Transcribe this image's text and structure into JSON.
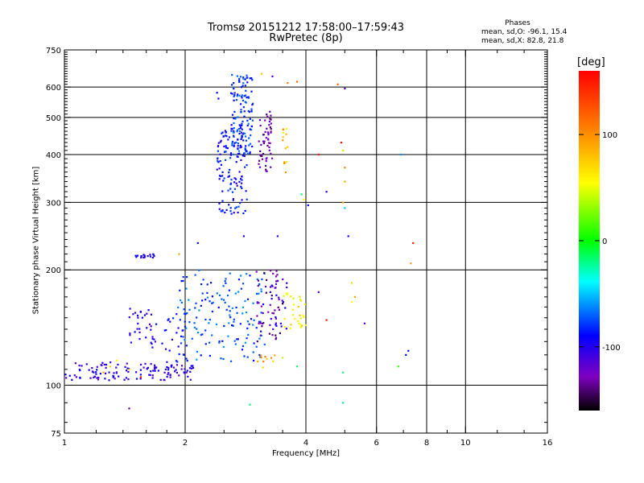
{
  "header": {
    "title_line1": "Tromsø 20151212 17:58:00–17:59:43",
    "title_line2": "RwPretec (8p)"
  },
  "phase_stats": {
    "heading": "Phases",
    "line_o": "mean, sd,O: -96.1, 15.4",
    "line_x": "mean, sd,X: 82.8, 21.8"
  },
  "colorbar": {
    "unit_label": "[deg]",
    "ticks": [
      "100",
      "0",
      "-100"
    ],
    "colors": [
      "#ff0000",
      "#ff8000",
      "#ffff00",
      "#00ff00",
      "#00ffff",
      "#0000ff",
      "#8000c0",
      "#000000"
    ]
  },
  "chart_data": {
    "type": "scatter",
    "title": "Tromsø 20151212 17:58:00–17:59:43",
    "subtitle": "RwPretec (8p)",
    "xlabel": "Frequency [MHz]",
    "ylabel": "Stationary phase Virtual Height [km]",
    "x_scale": "log",
    "y_scale": "log",
    "xlim": [
      1,
      16
    ],
    "ylim": [
      75,
      750
    ],
    "x_ticks": [
      1,
      2,
      4,
      6,
      8,
      10,
      16
    ],
    "y_ticks": [
      75,
      100,
      200,
      300,
      400,
      500,
      600,
      750
    ],
    "x_gridlines": [
      2,
      4,
      6,
      8,
      10
    ],
    "y_gridlines": [
      100,
      200,
      300,
      400,
      500,
      600
    ],
    "grid": true,
    "color_scale": {
      "label": "[deg]",
      "min": -160,
      "max": 160
    },
    "clusters": [
      {
        "f": [
          1.0,
          2.1
        ],
        "h": [
          103,
          115
        ],
        "phase": -105,
        "n": 130
      },
      {
        "f": [
          1.5,
          1.68
        ],
        "h": [
          215,
          220
        ],
        "phase": -100,
        "n": 18
      },
      {
        "f": [
          1.45,
          1.7
        ],
        "h": [
          125,
          160
        ],
        "phase": -100,
        "n": 35
      },
      {
        "f": [
          1.75,
          2.0
        ],
        "h": [
          120,
          150
        ],
        "phase": -95,
        "n": 20
      },
      {
        "f": [
          1.9,
          3.2
        ],
        "h": [
          115,
          200
        ],
        "phase": -75,
        "n": 160
      },
      {
        "f": [
          2.4,
          2.85
        ],
        "h": [
          280,
          470
        ],
        "phase": -90,
        "n": 120
      },
      {
        "f": [
          2.6,
          2.95
        ],
        "h": [
          400,
          650
        ],
        "phase": -80,
        "n": 130
      },
      {
        "f": [
          3.05,
          3.3
        ],
        "h": [
          360,
          520
        ],
        "phase": -130,
        "n": 55
      },
      {
        "f": [
          3.0,
          3.5
        ],
        "h": [
          130,
          200
        ],
        "phase": -135,
        "n": 45
      },
      {
        "f": [
          3.25,
          3.6
        ],
        "h": [
          140,
          190
        ],
        "phase": -110,
        "n": 25
      },
      {
        "f": [
          3.5,
          4.0
        ],
        "h": [
          140,
          175
        ],
        "phase": 80,
        "n": 30
      },
      {
        "f": [
          3.5,
          3.6
        ],
        "h": [
          355,
          470
        ],
        "phase": 95,
        "n": 14
      },
      {
        "f": [
          3.0,
          3.4
        ],
        "h": [
          110,
          120
        ],
        "phase": 100,
        "n": 10
      }
    ],
    "points": [
      {
        "f": 1.3,
        "h": 112,
        "phase": 90
      },
      {
        "f": 1.35,
        "h": 116,
        "phase": 80
      },
      {
        "f": 1.25,
        "h": 108,
        "phase": 100
      },
      {
        "f": 1.45,
        "h": 110,
        "phase": 90
      },
      {
        "f": 1.55,
        "h": 105,
        "phase": 150
      },
      {
        "f": 1.45,
        "h": 87,
        "phase": -140
      },
      {
        "f": 2.4,
        "h": 580,
        "phase": -90
      },
      {
        "f": 2.42,
        "h": 560,
        "phase": -90
      },
      {
        "f": 3.1,
        "h": 650,
        "phase": 95
      },
      {
        "f": 3.3,
        "h": 640,
        "phase": -110
      },
      {
        "f": 3.6,
        "h": 615,
        "phase": 110
      },
      {
        "f": 3.8,
        "h": 620,
        "phase": 120
      },
      {
        "f": 3.9,
        "h": 315,
        "phase": -20
      },
      {
        "f": 3.95,
        "h": 305,
        "phase": 80
      },
      {
        "f": 4.05,
        "h": 295,
        "phase": -90
      },
      {
        "f": 4.3,
        "h": 400,
        "phase": 150
      },
      {
        "f": 4.5,
        "h": 320,
        "phase": -100
      },
      {
        "f": 4.9,
        "h": 430,
        "phase": 155
      },
      {
        "f": 4.95,
        "h": 410,
        "phase": 60
      },
      {
        "f": 5.0,
        "h": 370,
        "phase": 110
      },
      {
        "f": 5.0,
        "h": 340,
        "phase": 100
      },
      {
        "f": 4.95,
        "h": 300,
        "phase": 100
      },
      {
        "f": 5.0,
        "h": 290,
        "phase": -50
      },
      {
        "f": 5.1,
        "h": 245,
        "phase": -100
      },
      {
        "f": 4.8,
        "h": 610,
        "phase": 120
      },
      {
        "f": 5.0,
        "h": 595,
        "phase": -110
      },
      {
        "f": 5.2,
        "h": 185,
        "phase": 90
      },
      {
        "f": 5.2,
        "h": 165,
        "phase": 80
      },
      {
        "f": 5.3,
        "h": 170,
        "phase": 100
      },
      {
        "f": 5.6,
        "h": 145,
        "phase": -120
      },
      {
        "f": 4.3,
        "h": 175,
        "phase": -120
      },
      {
        "f": 4.5,
        "h": 148,
        "phase": 150
      },
      {
        "f": 4.95,
        "h": 108,
        "phase": -20
      },
      {
        "f": 4.95,
        "h": 90,
        "phase": -20
      },
      {
        "f": 6.9,
        "h": 400,
        "phase": -60
      },
      {
        "f": 7.4,
        "h": 235,
        "phase": 150
      },
      {
        "f": 7.3,
        "h": 208,
        "phase": 100
      },
      {
        "f": 7.1,
        "h": 120,
        "phase": -90
      },
      {
        "f": 7.2,
        "h": 123,
        "phase": -90
      },
      {
        "f": 6.8,
        "h": 112,
        "phase": 20
      },
      {
        "f": 3.8,
        "h": 112,
        "phase": -20
      },
      {
        "f": 2.9,
        "h": 89,
        "phase": -20
      },
      {
        "f": 3.5,
        "h": 118,
        "phase": 60
      },
      {
        "f": 2.8,
        "h": 245,
        "phase": -100
      },
      {
        "f": 3.4,
        "h": 245,
        "phase": -110
      },
      {
        "f": 2.15,
        "h": 235,
        "phase": -90
      },
      {
        "f": 1.93,
        "h": 220,
        "phase": 100
      }
    ]
  }
}
